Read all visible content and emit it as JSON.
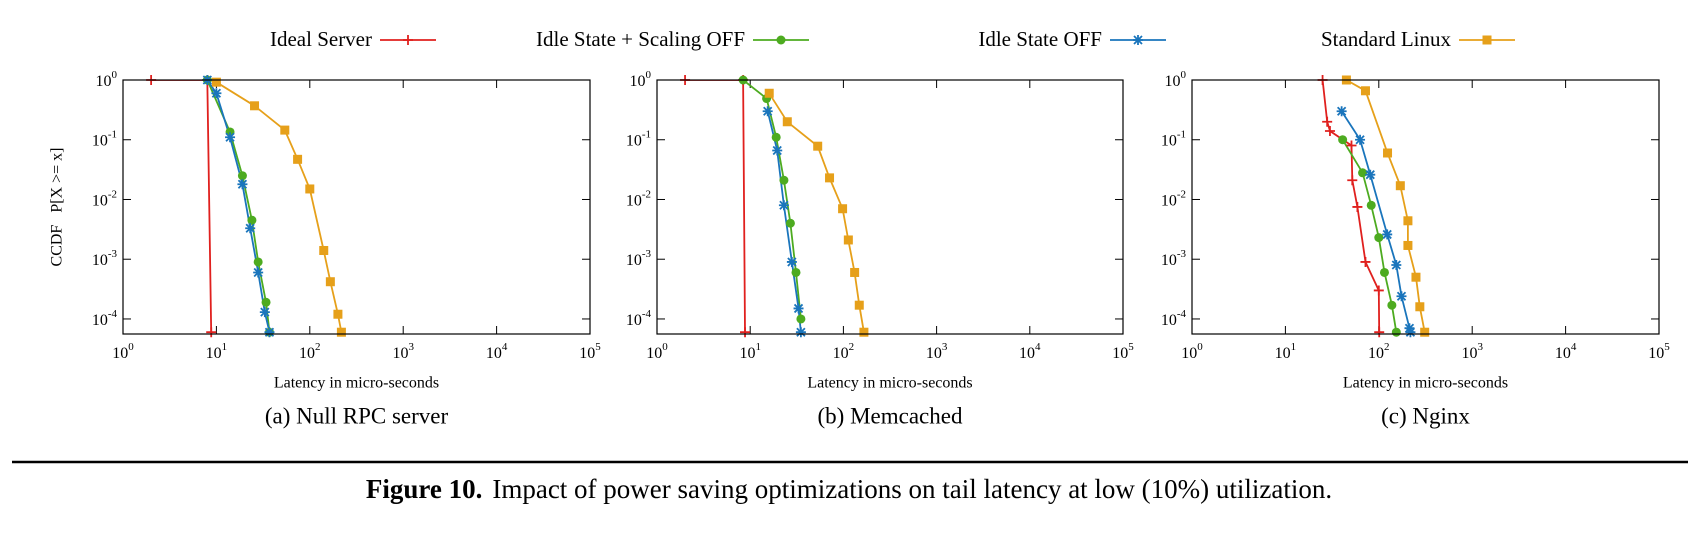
{
  "chart_data": [
    {
      "type": "line",
      "title": "(a) Null RPC server",
      "xlabel": "Latency in micro-seconds",
      "ylabel": "CCDF   P[X >= x]",
      "xscale": "log",
      "yscale": "log",
      "legend": "top",
      "xlim": [
        1,
        100000
      ],
      "ylim": [
        5.6e-05,
        1
      ],
      "xticks": [
        {
          "value": 1,
          "label": "10^0"
        },
        {
          "value": 10,
          "label": "10^1"
        },
        {
          "value": 100,
          "label": "10^2"
        },
        {
          "value": 1000,
          "label": "10^3"
        },
        {
          "value": 10000,
          "label": "10^4"
        },
        {
          "value": 100000,
          "label": "10^5"
        }
      ],
      "yticks": [
        {
          "value": 0.0001,
          "label": "10^-4"
        },
        {
          "value": 0.001,
          "label": "10^-3"
        },
        {
          "value": 0.01,
          "label": "10^-2"
        },
        {
          "value": 0.1,
          "label": "10^-1"
        },
        {
          "value": 1,
          "label": "10^0"
        }
      ],
      "series": [
        {
          "name": "Ideal Server",
          "color": "#e0201e",
          "marker": "plus",
          "x": [
            2,
            8,
            8.8
          ],
          "values": [
            1,
            1,
            6e-05
          ]
        },
        {
          "name": "Idle State + Scaling OFF",
          "color": "#4dab20",
          "marker": "circle",
          "x": [
            8,
            14,
            19,
            24,
            28,
            34,
            37
          ],
          "values": [
            1,
            0.135,
            0.025,
            0.0045,
            0.0009,
            0.00019,
            6e-05
          ]
        },
        {
          "name": "Idle State OFF",
          "color": "#1a75bc",
          "marker": "star",
          "x": [
            8,
            10,
            14,
            19,
            23,
            28,
            33,
            37
          ],
          "values": [
            1,
            0.6,
            0.11,
            0.018,
            0.0033,
            0.0006,
            0.00013,
            6e-05
          ]
        },
        {
          "name": "Standard Linux",
          "color": "#e6a01a",
          "marker": "square",
          "x": [
            10,
            25.6,
            54,
            74,
            100,
            141,
            166,
            200,
            218
          ],
          "values": [
            0.92,
            0.37,
            0.145,
            0.047,
            0.015,
            0.0014,
            0.00042,
            0.00012,
            6e-05
          ]
        }
      ]
    },
    {
      "type": "line",
      "title": "(b) Memcached",
      "xlabel": "Latency in micro-seconds",
      "xscale": "log",
      "yscale": "log",
      "xlim": [
        1,
        100000
      ],
      "ylim": [
        5.6e-05,
        1
      ],
      "xticks": [
        {
          "value": 1,
          "label": "10^0"
        },
        {
          "value": 10,
          "label": "10^1"
        },
        {
          "value": 100,
          "label": "10^2"
        },
        {
          "value": 1000,
          "label": "10^3"
        },
        {
          "value": 10000,
          "label": "10^4"
        },
        {
          "value": 100000,
          "label": "10^5"
        }
      ],
      "yticks": [
        {
          "value": 0.0001,
          "label": "10^-4"
        },
        {
          "value": 0.001,
          "label": "10^-3"
        },
        {
          "value": 0.01,
          "label": "10^-2"
        },
        {
          "value": 0.1,
          "label": "10^-1"
        },
        {
          "value": 1,
          "label": "10^0"
        }
      ],
      "series": [
        {
          "name": "Ideal Server",
          "color": "#e0201e",
          "marker": "plus",
          "x": [
            2,
            8.4,
            8.8
          ],
          "values": [
            1,
            1,
            6e-05
          ]
        },
        {
          "name": "Idle State + Scaling OFF",
          "color": "#4dab20",
          "marker": "circle",
          "x": [
            8.4,
            15,
            19,
            23,
            27,
            31,
            35
          ],
          "values": [
            1,
            0.49,
            0.11,
            0.021,
            0.004,
            0.0006,
            0.0001
          ]
        },
        {
          "name": "Idle State OFF",
          "color": "#1a75bc",
          "marker": "star",
          "x": [
            15.4,
            19.5,
            23,
            28,
            33,
            35
          ],
          "values": [
            0.3,
            0.066,
            0.008,
            0.0009,
            0.00015,
            6e-05
          ]
        },
        {
          "name": "Standard Linux",
          "color": "#e6a01a",
          "marker": "square",
          "x": [
            16,
            25,
            53,
            71,
            98,
            113,
            132,
            148,
            166
          ],
          "values": [
            0.6,
            0.2,
            0.078,
            0.023,
            0.007,
            0.0021,
            0.0006,
            0.00017,
            6e-05
          ]
        }
      ]
    },
    {
      "type": "line",
      "title": "(c) Nginx",
      "xlabel": "Latency in micro-seconds",
      "xscale": "log",
      "yscale": "log",
      "xlim": [
        1,
        100000
      ],
      "ylim": [
        5.6e-05,
        1
      ],
      "xticks": [
        {
          "value": 1,
          "label": "10^0"
        },
        {
          "value": 10,
          "label": "10^1"
        },
        {
          "value": 100,
          "label": "10^2"
        },
        {
          "value": 1000,
          "label": "10^3"
        },
        {
          "value": 10000,
          "label": "10^4"
        },
        {
          "value": 100000,
          "label": "10^5"
        }
      ],
      "yticks": [
        {
          "value": 0.0001,
          "label": "10^-4"
        },
        {
          "value": 0.001,
          "label": "10^-3"
        },
        {
          "value": 0.01,
          "label": "10^-2"
        },
        {
          "value": 0.1,
          "label": "10^-1"
        },
        {
          "value": 1,
          "label": "10^0"
        }
      ],
      "series": [
        {
          "name": "Ideal Server",
          "color": "#e0201e",
          "marker": "plus",
          "x": [
            25,
            28,
            30,
            51,
            52,
            59,
            72,
            100,
            101
          ],
          "values": [
            1,
            0.2,
            0.14,
            0.08,
            0.021,
            0.0075,
            0.0009,
            0.0003,
            6e-05
          ]
        },
        {
          "name": "Idle State + Scaling OFF",
          "color": "#4dab20",
          "marker": "circle",
          "x": [
            41,
            67,
            83,
            100,
            115,
            138,
            154
          ],
          "values": [
            0.1,
            0.028,
            0.008,
            0.0023,
            0.0006,
            0.00017,
            6e-05
          ]
        },
        {
          "name": "Idle State OFF",
          "color": "#1a75bc",
          "marker": "star",
          "x": [
            40,
            63,
            81,
            123,
            154,
            175,
            213,
            218
          ],
          "values": [
            0.3,
            0.1,
            0.026,
            0.0026,
            0.0008,
            0.00024,
            7e-05,
            6e-05
          ]
        },
        {
          "name": "Standard Linux",
          "color": "#e6a01a",
          "marker": "square",
          "x": [
            45,
            72,
            124,
            170,
            205,
            205,
            250,
            275,
            310
          ],
          "values": [
            1,
            0.66,
            0.06,
            0.017,
            0.0044,
            0.0017,
            0.0005,
            0.00016,
            6e-05
          ]
        }
      ]
    }
  ],
  "caption": {
    "label": "Figure 10.",
    "text": "Impact of power saving optimizations on tail latency at low (10%) utilization."
  }
}
